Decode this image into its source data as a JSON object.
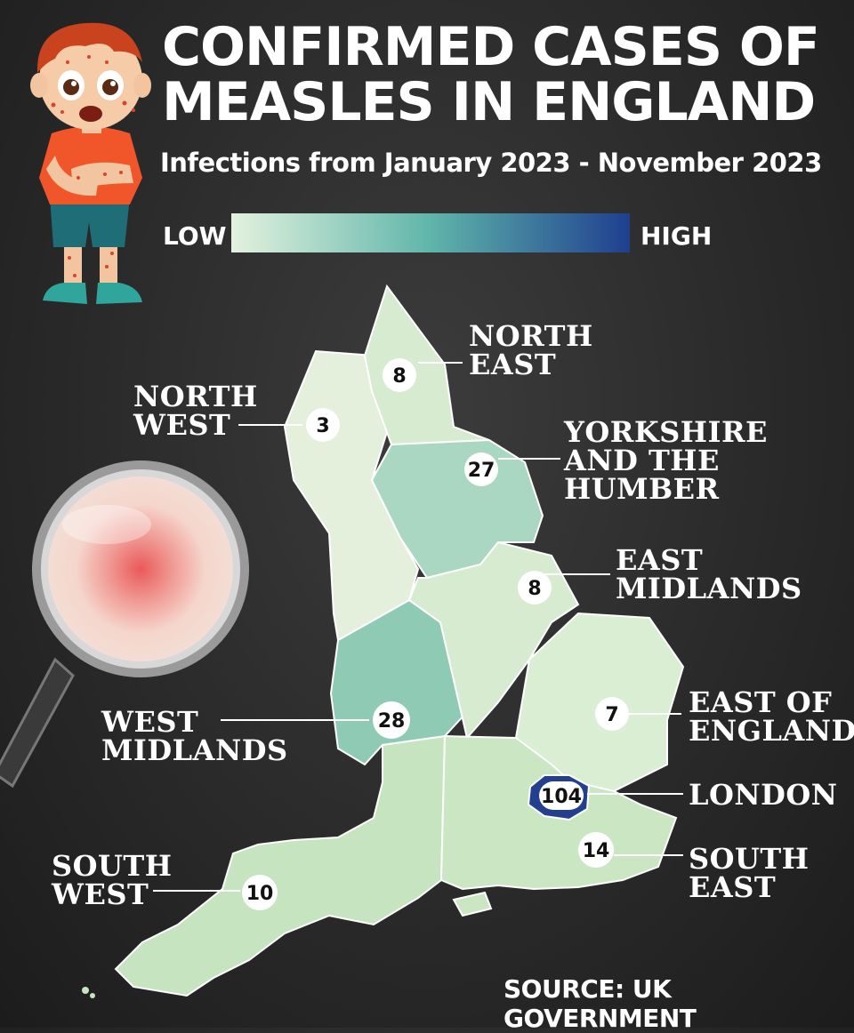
{
  "title": {
    "line1": "CONFIRMED CASES OF",
    "line2": "MEASLES IN ENGLAND"
  },
  "subtitle": "Infections from January 2023 - November 2023",
  "legend": {
    "low": "LOW",
    "high": "HIGH",
    "color_low": "#e3f2de",
    "color_mid": "#5fb5aa",
    "color_high": "#1f3f8f"
  },
  "source": "SOURCE: UK GOVERNMENT",
  "colors": {
    "north_east": "#d6ebcf",
    "north_west": "#e4f0dc",
    "yorkshire_and_the_humber": "#a9d7c1",
    "east_midlands": "#d6ebcf",
    "west_midlands": "#8fcbb4",
    "east_of_england": "#d9eed2",
    "london": "#233f90",
    "south_east": "#cbe6c3",
    "south_west": "#c6e4bf"
  },
  "regions": {
    "north_east": {
      "name_line1": "NORTH",
      "name_line2": "EAST",
      "cases": "8"
    },
    "north_west": {
      "name_line1": "NORTH",
      "name_line2": "WEST",
      "cases": "3"
    },
    "yorkshire_and_the_humber": {
      "name_line1": "YORKSHIRE",
      "name_line2": "AND THE",
      "name_line3": "HUMBER",
      "cases": "27"
    },
    "east_midlands": {
      "name_line1": "EAST",
      "name_line2": "MIDLANDS",
      "cases": "8"
    },
    "west_midlands": {
      "name_line1": "WEST",
      "name_line2": "MIDLANDS",
      "cases": "28"
    },
    "east_of_england": {
      "name_line1": "EAST OF",
      "name_line2": "ENGLAND",
      "cases": "7"
    },
    "london": {
      "name_line1": "LONDON",
      "cases": "104"
    },
    "south_east": {
      "name_line1": "SOUTH",
      "name_line2": "EAST",
      "cases": "14"
    },
    "south_west": {
      "name_line1": "SOUTH",
      "name_line2": "WEST",
      "cases": "10"
    }
  }
}
